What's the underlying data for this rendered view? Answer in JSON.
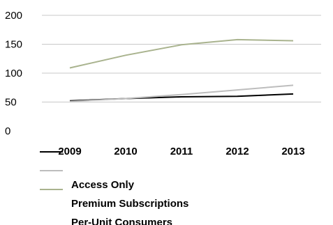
{
  "chart_data": {
    "type": "line",
    "categories": [
      "2009",
      "2010",
      "2011",
      "2012",
      "2013"
    ],
    "ylim": [
      0,
      200
    ],
    "yticks": [
      0,
      50,
      100,
      150,
      200
    ],
    "grid": true,
    "legend_position": "bottom",
    "series": [
      {
        "name": "Access Only",
        "color": "#000000",
        "values": [
          52,
          56,
          59,
          60,
          64
        ]
      },
      {
        "name": "Premium Subscriptions",
        "color": "#bdbdbd",
        "values": [
          51,
          56,
          63,
          71,
          79
        ]
      },
      {
        "name": "Per-Unit Consumers",
        "color": "#a9b38e",
        "values": [
          109,
          131,
          149,
          158,
          156
        ]
      }
    ]
  }
}
